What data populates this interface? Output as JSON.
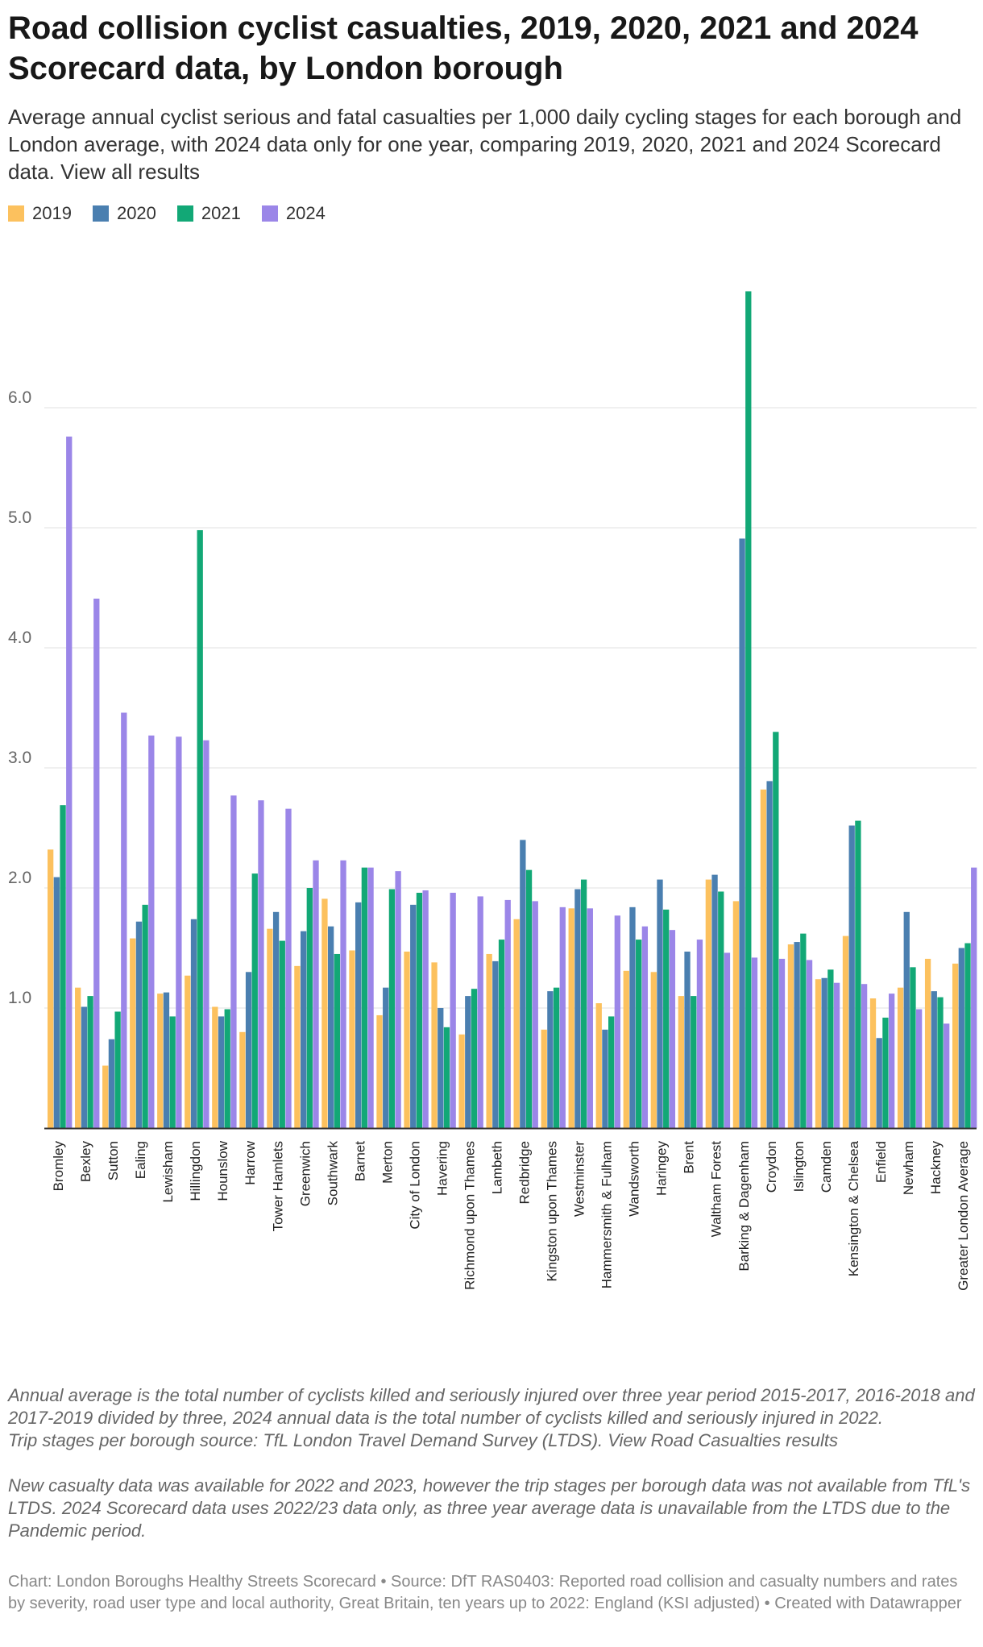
{
  "title": "Road collision cyclist casualties, 2019, 2020, 2021 and 2024 Scorecard data, by London borough",
  "subtitle": "Average annual cyclist serious and fatal casualties per 1,000 daily cycling stages for each borough and London average, with 2024 data only for one year, comparing 2019, 2020, 2021 and 2024 Scorecard data.",
  "subtitle_link": "View all results",
  "notes": {
    "note1": "Annual average is the total number of cyclists killed and seriously injured over three year period 2015-2017, 2016-2018 and 2017-2019 divided by three, 2024 annual data is the total number of cyclists killed and seriously injured in 2022.",
    "note2": "Trip stages per borough source: TfL London Travel Demand Survey (LTDS). View Road Casualties results",
    "note3": "New casualty data was available for 2022 and 2023, however the trip stages per borough data was not available from TfL's LTDS. 2024 Scorecard data uses 2022/23 data only, as three year average data is unavailable from the LTDS due to the Pandemic period."
  },
  "credit": "Chart: London Boroughs Healthy Streets Scorecard • Source: DfT RAS0403: Reported road collision and casualty numbers and rates by severity, road user type and local authority, Great Britain, ten years up to 2022: England (KSI adjusted) • Created with Datawrapper",
  "colors": {
    "2019": "#fcc15e",
    "2020": "#4a7fb0",
    "2021": "#12a876",
    "2024": "#9b86e8"
  },
  "chart_data": {
    "type": "bar",
    "title": "Road collision cyclist casualties, 2019, 2020, 2021 and 2024 Scorecard data, by London borough",
    "xlabel": "",
    "ylabel": "",
    "ylim": [
      0,
      7
    ],
    "yticks": [
      "1.0",
      "2.0",
      "3.0",
      "4.0",
      "5.0",
      "6.0"
    ],
    "grid": true,
    "legend_position": "top-left",
    "categories": [
      "Bromley",
      "Bexley",
      "Sutton",
      "Ealing",
      "Lewisham",
      "Hillingdon",
      "Hounslow",
      "Harrow",
      "Tower Hamlets",
      "Greenwich",
      "Southwark",
      "Barnet",
      "Merton",
      "City of London",
      "Havering",
      "Richmond upon Thames",
      "Lambeth",
      "Redbridge",
      "Kingston upon Thames",
      "Westminster",
      "Hammersmith & Fulham",
      "Wandsworth",
      "Haringey",
      "Brent",
      "Waltham Forest",
      "Barking & Dagenham",
      "Croydon",
      "Islington",
      "Camden",
      "Kensington & Chelsea",
      "Enfield",
      "Newham",
      "Hackney",
      "Greater London Average"
    ],
    "series": [
      {
        "name": "2019",
        "values": [
          2.32,
          1.17,
          0.52,
          1.58,
          1.12,
          1.27,
          1.01,
          0.8,
          1.66,
          1.35,
          1.91,
          1.48,
          0.94,
          1.47,
          1.38,
          0.78,
          1.45,
          1.74,
          0.82,
          1.83,
          1.04,
          1.31,
          1.3,
          1.1,
          2.07,
          1.89,
          2.82,
          1.53,
          1.24,
          1.6,
          1.08,
          1.17,
          1.41,
          1.37
        ]
      },
      {
        "name": "2020",
        "values": [
          2.09,
          1.01,
          0.74,
          1.72,
          1.13,
          1.74,
          0.93,
          1.3,
          1.8,
          1.64,
          1.68,
          1.88,
          1.17,
          1.86,
          1.0,
          1.1,
          1.39,
          2.4,
          1.14,
          1.99,
          0.82,
          1.84,
          2.07,
          1.47,
          2.11,
          4.91,
          2.89,
          1.55,
          1.25,
          2.52,
          0.75,
          1.8,
          1.14,
          1.5
        ]
      },
      {
        "name": "2021",
        "values": [
          2.69,
          1.1,
          0.97,
          1.86,
          0.93,
          4.98,
          0.99,
          2.12,
          1.56,
          2.0,
          1.45,
          2.17,
          1.99,
          1.96,
          0.84,
          1.16,
          1.57,
          2.15,
          1.17,
          2.07,
          0.93,
          1.57,
          1.82,
          1.1,
          1.97,
          6.97,
          3.3,
          1.62,
          1.32,
          2.56,
          0.92,
          1.34,
          1.09,
          1.54
        ]
      },
      {
        "name": "2024",
        "values": [
          5.76,
          4.41,
          3.46,
          3.27,
          3.26,
          3.23,
          2.77,
          2.73,
          2.66,
          2.23,
          2.23,
          2.17,
          2.14,
          1.98,
          1.96,
          1.93,
          1.9,
          1.89,
          1.84,
          1.83,
          1.77,
          1.68,
          1.65,
          1.57,
          1.46,
          1.42,
          1.41,
          1.4,
          1.21,
          1.2,
          1.12,
          0.99,
          0.87,
          2.17
        ]
      }
    ]
  }
}
